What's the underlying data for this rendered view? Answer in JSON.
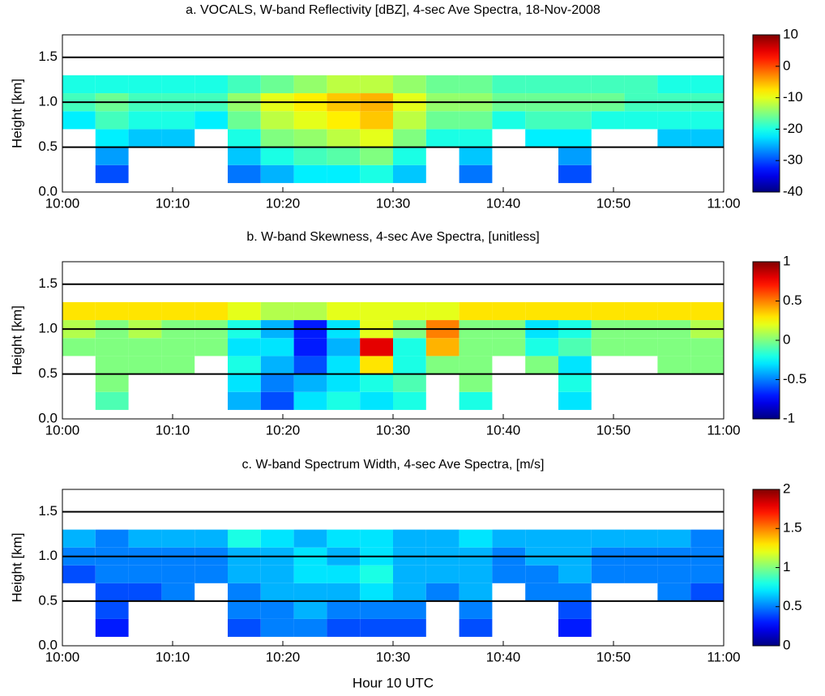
{
  "chart_data": [
    {
      "type": "heatmap",
      "title": "a. VOCALS, W-band Reflectivity [dBZ], 4-sec Ave Spectra, 18-Nov-2008",
      "ylabel": "Height [km]",
      "x_bins": [
        0,
        3,
        6,
        9,
        12,
        15,
        18,
        21,
        24,
        27,
        30,
        33,
        36,
        39,
        42,
        45,
        48,
        51,
        54,
        57,
        60
      ],
      "y_bins": [
        0.1,
        0.3,
        0.5,
        0.7,
        0.9,
        1.1,
        1.3
      ],
      "z": [
        [
          null,
          -30,
          null,
          null,
          null,
          -28,
          -25,
          -22,
          -22,
          -20,
          -24,
          null,
          -28,
          null,
          null,
          -30,
          null,
          null,
          null,
          null
        ],
        [
          null,
          -26,
          null,
          null,
          null,
          -24,
          -20,
          -18,
          -17,
          -15,
          -20,
          null,
          -24,
          null,
          null,
          -26,
          null,
          null,
          null,
          null
        ],
        [
          null,
          -22,
          -24,
          -24,
          null,
          -20,
          -15,
          -14,
          -12,
          -10,
          -15,
          -20,
          -20,
          null,
          -22,
          -22,
          null,
          null,
          -24,
          -24
        ],
        [
          -22,
          -18,
          -20,
          -20,
          -22,
          -16,
          -12,
          -10,
          -8,
          -6,
          -12,
          -16,
          -16,
          -20,
          -18,
          -18,
          -20,
          -20,
          -20,
          -20
        ],
        [
          -18,
          -16,
          -18,
          -18,
          -18,
          -14,
          -10,
          -8,
          -6,
          -5,
          -10,
          -14,
          -14,
          -16,
          -16,
          -16,
          -16,
          -18,
          -18,
          -18
        ],
        [
          -20,
          -20,
          -20,
          -20,
          -20,
          -18,
          -16,
          -14,
          -12,
          -12,
          -14,
          -16,
          -16,
          -18,
          -18,
          -18,
          -18,
          -18,
          -20,
          -20
        ]
      ],
      "xlim": [
        0,
        60
      ],
      "xticks": [
        {
          "value": 0,
          "label": "10:00"
        },
        {
          "value": 10,
          "label": "10:10"
        },
        {
          "value": 20,
          "label": "10:20"
        },
        {
          "value": 30,
          "label": "10:30"
        },
        {
          "value": 40,
          "label": "10:40"
        },
        {
          "value": 50,
          "label": "10:50"
        },
        {
          "value": 60,
          "label": "11:00"
        }
      ],
      "ylim": [
        0,
        1.75
      ],
      "yticks": [
        {
          "value": 0,
          "label": "0.0"
        },
        0.5,
        {
          "value": 1,
          "label": "1.0"
        },
        1.5
      ],
      "grid": true,
      "colormap": "jet",
      "clim": [
        -40,
        10
      ],
      "cticks": [
        -40,
        -30,
        -20,
        -10,
        0,
        10
      ]
    },
    {
      "type": "heatmap",
      "title": "b. W-band Skewness, 4-sec Ave Spectra, [unitless]",
      "ylabel": "Height [km]",
      "x_bins": [
        0,
        3,
        6,
        9,
        12,
        15,
        18,
        21,
        24,
        27,
        30,
        33,
        36,
        39,
        42,
        45,
        48,
        51,
        54,
        57,
        60
      ],
      "y_bins": [
        0.1,
        0.3,
        0.5,
        0.7,
        0.9,
        1.1,
        1.3
      ],
      "z": [
        [
          null,
          -0.1,
          null,
          null,
          null,
          -0.4,
          -0.6,
          -0.3,
          -0.2,
          -0.3,
          -0.2,
          null,
          -0.2,
          null,
          null,
          -0.3,
          null,
          null,
          null,
          null
        ],
        [
          null,
          0,
          null,
          null,
          null,
          -0.3,
          -0.5,
          -0.4,
          -0.3,
          -0.2,
          -0.1,
          null,
          0,
          null,
          null,
          -0.2,
          null,
          null,
          null,
          null
        ],
        [
          null,
          0,
          0,
          0,
          null,
          -0.2,
          -0.4,
          -0.6,
          -0.3,
          0.3,
          -0.2,
          0,
          0,
          null,
          0,
          -0.3,
          null,
          null,
          0,
          0
        ],
        [
          0,
          0,
          0,
          0,
          0,
          -0.3,
          -0.3,
          -0.7,
          -0.4,
          0.8,
          -0.2,
          0.4,
          0,
          0,
          -0.2,
          -0.1,
          0,
          0,
          0,
          0
        ],
        [
          0.1,
          0,
          0.1,
          0,
          0,
          -0.2,
          -0.4,
          -0.7,
          -0.3,
          0.2,
          0,
          0.5,
          0,
          0,
          -0.3,
          -0.2,
          0,
          0,
          0,
          0.1
        ],
        [
          0.3,
          0.3,
          0.3,
          0.3,
          0.3,
          0.2,
          0.1,
          0.1,
          0.2,
          0.2,
          0.2,
          0.2,
          0.3,
          0.3,
          0.3,
          0.3,
          0.3,
          0.3,
          0.3,
          0.3
        ]
      ],
      "xlim": [
        0,
        60
      ],
      "xticks": [
        {
          "value": 0,
          "label": "10:00"
        },
        {
          "value": 10,
          "label": "10:10"
        },
        {
          "value": 20,
          "label": "10:20"
        },
        {
          "value": 30,
          "label": "10:30"
        },
        {
          "value": 40,
          "label": "10:40"
        },
        {
          "value": 50,
          "label": "10:50"
        },
        {
          "value": 60,
          "label": "11:00"
        }
      ],
      "ylim": [
        0,
        1.75
      ],
      "yticks": [
        {
          "value": 0,
          "label": "0.0"
        },
        0.5,
        {
          "value": 1,
          "label": "1.0"
        },
        1.5
      ],
      "grid": true,
      "colormap": "jet",
      "clim": [
        -1,
        1
      ],
      "cticks": [
        -1,
        -0.5,
        0,
        0.5,
        1
      ]
    },
    {
      "type": "heatmap",
      "title": "c. W-band Spectrum Width, 4-sec Ave Spectra, [m/s]",
      "ylabel": "Height [km]",
      "xlabel": "Hour 10 UTC",
      "x_bins": [
        0,
        3,
        6,
        9,
        12,
        15,
        18,
        21,
        24,
        27,
        30,
        33,
        36,
        39,
        42,
        45,
        48,
        51,
        54,
        57,
        60
      ],
      "y_bins": [
        0.1,
        0.3,
        0.5,
        0.7,
        0.9,
        1.1,
        1.3
      ],
      "z": [
        [
          null,
          0.3,
          null,
          null,
          null,
          0.4,
          0.5,
          0.5,
          0.4,
          0.4,
          0.4,
          null,
          0.4,
          null,
          null,
          0.3,
          null,
          null,
          null,
          null
        ],
        [
          null,
          0.4,
          null,
          null,
          null,
          0.5,
          0.5,
          0.6,
          0.5,
          0.5,
          0.5,
          null,
          0.5,
          null,
          null,
          0.4,
          null,
          null,
          null,
          null
        ],
        [
          null,
          0.4,
          0.4,
          0.5,
          null,
          0.5,
          0.6,
          0.6,
          0.6,
          0.7,
          0.6,
          0.5,
          0.6,
          null,
          0.5,
          0.5,
          null,
          null,
          0.5,
          0.4
        ],
        [
          0.4,
          0.5,
          0.5,
          0.5,
          0.5,
          0.6,
          0.6,
          0.7,
          0.7,
          0.8,
          0.6,
          0.6,
          0.6,
          0.5,
          0.5,
          0.6,
          0.5,
          0.5,
          0.5,
          0.5
        ],
        [
          0.5,
          0.5,
          0.5,
          0.5,
          0.5,
          0.6,
          0.6,
          0.7,
          0.6,
          0.7,
          0.6,
          0.6,
          0.6,
          0.5,
          0.6,
          0.6,
          0.5,
          0.5,
          0.5,
          0.5
        ],
        [
          0.6,
          0.5,
          0.6,
          0.6,
          0.6,
          0.8,
          0.7,
          0.6,
          0.7,
          0.7,
          0.6,
          0.6,
          0.7,
          0.6,
          0.6,
          0.6,
          0.6,
          0.6,
          0.6,
          0.5
        ]
      ],
      "xlim": [
        0,
        60
      ],
      "xticks": [
        {
          "value": 0,
          "label": "10:00"
        },
        {
          "value": 10,
          "label": "10:10"
        },
        {
          "value": 20,
          "label": "10:20"
        },
        {
          "value": 30,
          "label": "10:30"
        },
        {
          "value": 40,
          "label": "10:40"
        },
        {
          "value": 50,
          "label": "10:50"
        },
        {
          "value": 60,
          "label": "11:00"
        }
      ],
      "ylim": [
        0,
        1.75
      ],
      "yticks": [
        {
          "value": 0,
          "label": "0.0"
        },
        0.5,
        {
          "value": 1,
          "label": "1.0"
        },
        1.5
      ],
      "grid": true,
      "colormap": "jet",
      "clim": [
        0,
        2
      ],
      "cticks": [
        0,
        0.5,
        1,
        1.5,
        2
      ]
    }
  ]
}
